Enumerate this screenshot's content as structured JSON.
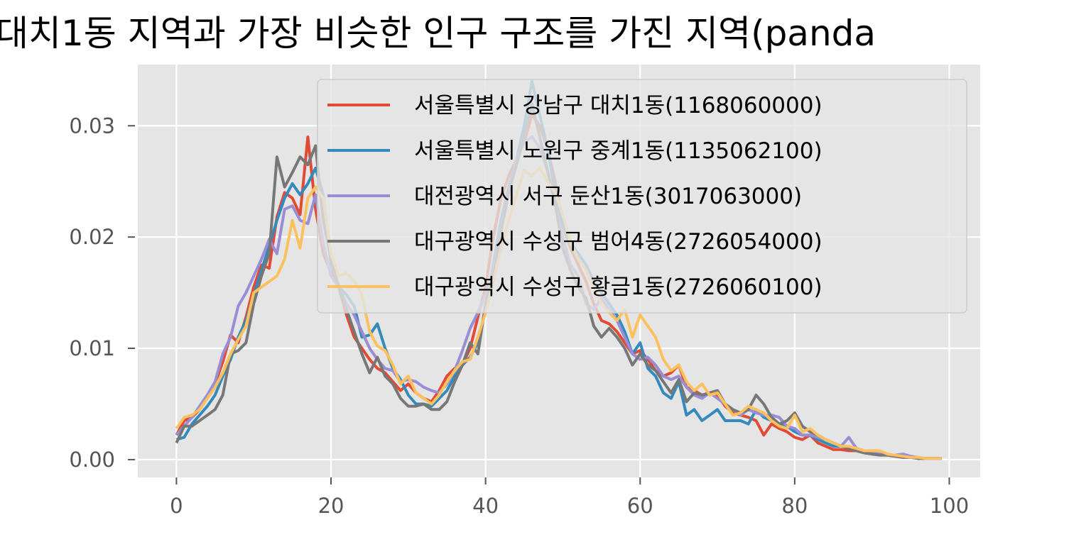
{
  "chart_data": {
    "type": "line",
    "title": "대치1동 지역과 가장 비슷한 인구 구조를 가진 지역(panda",
    "xlabel": "",
    "ylabel": "",
    "xlim": [
      -5,
      104
    ],
    "ylim": [
      -0.0016,
      0.0355
    ],
    "xticks": [
      0,
      20,
      40,
      60,
      80,
      100
    ],
    "yticks": [
      0.0,
      0.01,
      0.02,
      0.03
    ],
    "xtick_labels": [
      "0",
      "20",
      "40",
      "60",
      "80",
      "100"
    ],
    "ytick_labels": [
      "0.00",
      "0.01",
      "0.02",
      "0.03"
    ],
    "grid": true,
    "style": "ggplot",
    "legend_position": "upper right",
    "series": [
      {
        "name": "서울특별시 강남구 대치1동(1168060000)",
        "color": "#E24A33",
        "values": [
          0.0022,
          0.0035,
          0.0038,
          0.0045,
          0.0058,
          0.0068,
          0.0088,
          0.0112,
          0.0105,
          0.0128,
          0.0155,
          0.0175,
          0.0172,
          0.0218,
          0.024,
          0.0235,
          0.022,
          0.029,
          0.0225,
          0.0185,
          0.0168,
          0.0155,
          0.013,
          0.011,
          0.01,
          0.009,
          0.0082,
          0.0078,
          0.007,
          0.0062,
          0.0068,
          0.006,
          0.0055,
          0.0052,
          0.0062,
          0.0075,
          0.0082,
          0.0085,
          0.01,
          0.0128,
          0.0155,
          0.02,
          0.0235,
          0.0255,
          0.027,
          0.0285,
          0.031,
          0.03,
          0.028,
          0.025,
          0.021,
          0.019,
          0.0175,
          0.016,
          0.014,
          0.0125,
          0.0122,
          0.0115,
          0.0105,
          0.0095,
          0.0098,
          0.009,
          0.008,
          0.0075,
          0.0078,
          0.0085,
          0.0065,
          0.0062,
          0.0058,
          0.006,
          0.0058,
          0.0048,
          0.0042,
          0.004,
          0.0038,
          0.0035,
          0.0022,
          0.0032,
          0.0028,
          0.0025,
          0.002,
          0.0018,
          0.0022,
          0.0015,
          0.0012,
          0.0009,
          0.0009,
          0.0008,
          0.0008,
          0.0007,
          0.0005,
          0.0005,
          0.0004,
          0.0003,
          0.0003,
          0.0002,
          0.0001,
          0.0001,
          0.0001,
          0.0001
        ]
      },
      {
        "name": "서울특별시 노원구 중계1동(1135062100)",
        "color": "#348ABD",
        "values": [
          0.0018,
          0.002,
          0.0032,
          0.004,
          0.0048,
          0.0058,
          0.0075,
          0.009,
          0.011,
          0.0125,
          0.0148,
          0.017,
          0.0192,
          0.0215,
          0.0235,
          0.0248,
          0.0238,
          0.0248,
          0.0262,
          0.0238,
          0.0175,
          0.0155,
          0.0148,
          0.0138,
          0.011,
          0.0112,
          0.0122,
          0.01,
          0.0082,
          0.0072,
          0.0058,
          0.005,
          0.005,
          0.0048,
          0.0055,
          0.0062,
          0.0075,
          0.0085,
          0.0092,
          0.0105,
          0.0135,
          0.0175,
          0.0215,
          0.0245,
          0.027,
          0.03,
          0.034,
          0.031,
          0.028,
          0.024,
          0.021,
          0.0195,
          0.0185,
          0.0175,
          0.016,
          0.015,
          0.014,
          0.013,
          0.0115,
          0.0095,
          0.0105,
          0.0082,
          0.0075,
          0.006,
          0.0055,
          0.007,
          0.004,
          0.0045,
          0.0035,
          0.004,
          0.0045,
          0.0035,
          0.0035,
          0.0035,
          0.0032,
          0.0045,
          0.0038,
          0.0035,
          0.0032,
          0.003,
          0.0025,
          0.0022,
          0.0022,
          0.0018,
          0.0015,
          0.0012,
          0.0012,
          0.001,
          0.001,
          0.0008,
          0.0006,
          0.0005,
          0.0004,
          0.0003,
          0.0002,
          0.0002,
          0.0001,
          0.0001,
          0.0001,
          0.0001
        ]
      },
      {
        "name": "대전광역시 서구 둔산1동(3017063000)",
        "color": "#988ED5",
        "values": [
          0.0022,
          0.003,
          0.0038,
          0.0048,
          0.0058,
          0.007,
          0.0095,
          0.011,
          0.0138,
          0.015,
          0.0165,
          0.018,
          0.0198,
          0.0185,
          0.0225,
          0.0228,
          0.0215,
          0.0212,
          0.0238,
          0.0195,
          0.0165,
          0.0155,
          0.014,
          0.013,
          0.0115,
          0.01,
          0.009,
          0.0082,
          0.008,
          0.007,
          0.0072,
          0.007,
          0.0065,
          0.0062,
          0.006,
          0.0068,
          0.008,
          0.0098,
          0.0118,
          0.0132,
          0.0148,
          0.017,
          0.0208,
          0.024,
          0.027,
          0.0285,
          0.029,
          0.028,
          0.026,
          0.023,
          0.02,
          0.0175,
          0.0165,
          0.014,
          0.0135,
          0.0145,
          0.0135,
          0.0125,
          0.011,
          0.0095,
          0.009,
          0.0092,
          0.0085,
          0.0075,
          0.0072,
          0.0075,
          0.0065,
          0.0058,
          0.0055,
          0.006,
          0.0055,
          0.005,
          0.0045,
          0.004,
          0.0045,
          0.0042,
          0.004,
          0.004,
          0.0038,
          0.003,
          0.0028,
          0.0022,
          0.0022,
          0.002,
          0.0018,
          0.0015,
          0.0012,
          0.002,
          0.001,
          0.0008,
          0.0006,
          0.0005,
          0.0004,
          0.0004,
          0.0005,
          0.0003,
          0.0002,
          0.0001,
          0.0001,
          0.0001
        ]
      },
      {
        "name": "대구광역시 수성구 범어4동(2726054000)",
        "color": "#777777",
        "values": [
          0.0015,
          0.003,
          0.003,
          0.0035,
          0.004,
          0.0045,
          0.0058,
          0.0095,
          0.0098,
          0.0105,
          0.014,
          0.0165,
          0.0185,
          0.0272,
          0.0245,
          0.0258,
          0.0272,
          0.0265,
          0.0282,
          0.0215,
          0.018,
          0.0155,
          0.0135,
          0.0115,
          0.0095,
          0.0078,
          0.0092,
          0.0075,
          0.0068,
          0.0055,
          0.0048,
          0.0048,
          0.005,
          0.0045,
          0.0045,
          0.0052,
          0.007,
          0.0085,
          0.0105,
          0.0095,
          0.014,
          0.0165,
          0.0205,
          0.024,
          0.0265,
          0.029,
          0.032,
          0.029,
          0.026,
          0.023,
          0.019,
          0.017,
          0.0155,
          0.0145,
          0.012,
          0.011,
          0.0118,
          0.011,
          0.01,
          0.0085,
          0.0095,
          0.0085,
          0.008,
          0.007,
          0.006,
          0.0072,
          0.0052,
          0.006,
          0.0058,
          0.006,
          0.0062,
          0.005,
          0.0045,
          0.0042,
          0.0045,
          0.0058,
          0.005,
          0.0038,
          0.0032,
          0.0035,
          0.0042,
          0.003,
          0.0025,
          0.0022,
          0.0018,
          0.0015,
          0.0012,
          0.001,
          0.0008,
          0.0006,
          0.0005,
          0.0004,
          0.0004,
          0.0003,
          0.0002,
          0.0002,
          0.0001,
          0.0001,
          0.0001,
          0.0001
        ]
      },
      {
        "name": "대구광역시 수성구 황금1동(2726060100)",
        "color": "#FBC15E",
        "values": [
          0.0028,
          0.0038,
          0.004,
          0.0045,
          0.0055,
          0.0065,
          0.0078,
          0.0095,
          0.0108,
          0.012,
          0.015,
          0.0155,
          0.016,
          0.0165,
          0.018,
          0.0215,
          0.019,
          0.0235,
          0.0245,
          0.0235,
          0.0185,
          0.0165,
          0.0168,
          0.016,
          0.0148,
          0.0115,
          0.0102,
          0.0098,
          0.0085,
          0.0068,
          0.0075,
          0.006,
          0.0055,
          0.005,
          0.0058,
          0.007,
          0.008,
          0.0088,
          0.009,
          0.011,
          0.0132,
          0.016,
          0.019,
          0.0215,
          0.0238,
          0.026,
          0.0255,
          0.0262,
          0.025,
          0.024,
          0.022,
          0.0195,
          0.018,
          0.017,
          0.0155,
          0.014,
          0.0132,
          0.0125,
          0.0135,
          0.011,
          0.013,
          0.012,
          0.011,
          0.009,
          0.008,
          0.0085,
          0.007,
          0.0062,
          0.0068,
          0.0058,
          0.006,
          0.005,
          0.004,
          0.0042,
          0.0048,
          0.0045,
          0.0042,
          0.0035,
          0.003,
          0.0028,
          0.004,
          0.0025,
          0.0028,
          0.0022,
          0.0018,
          0.0015,
          0.0012,
          0.0012,
          0.001,
          0.0008,
          0.0008,
          0.0008,
          0.0005,
          0.0004,
          0.0003,
          0.0002,
          0.0002,
          0.0001,
          0.0001,
          0.0001
        ]
      }
    ]
  }
}
